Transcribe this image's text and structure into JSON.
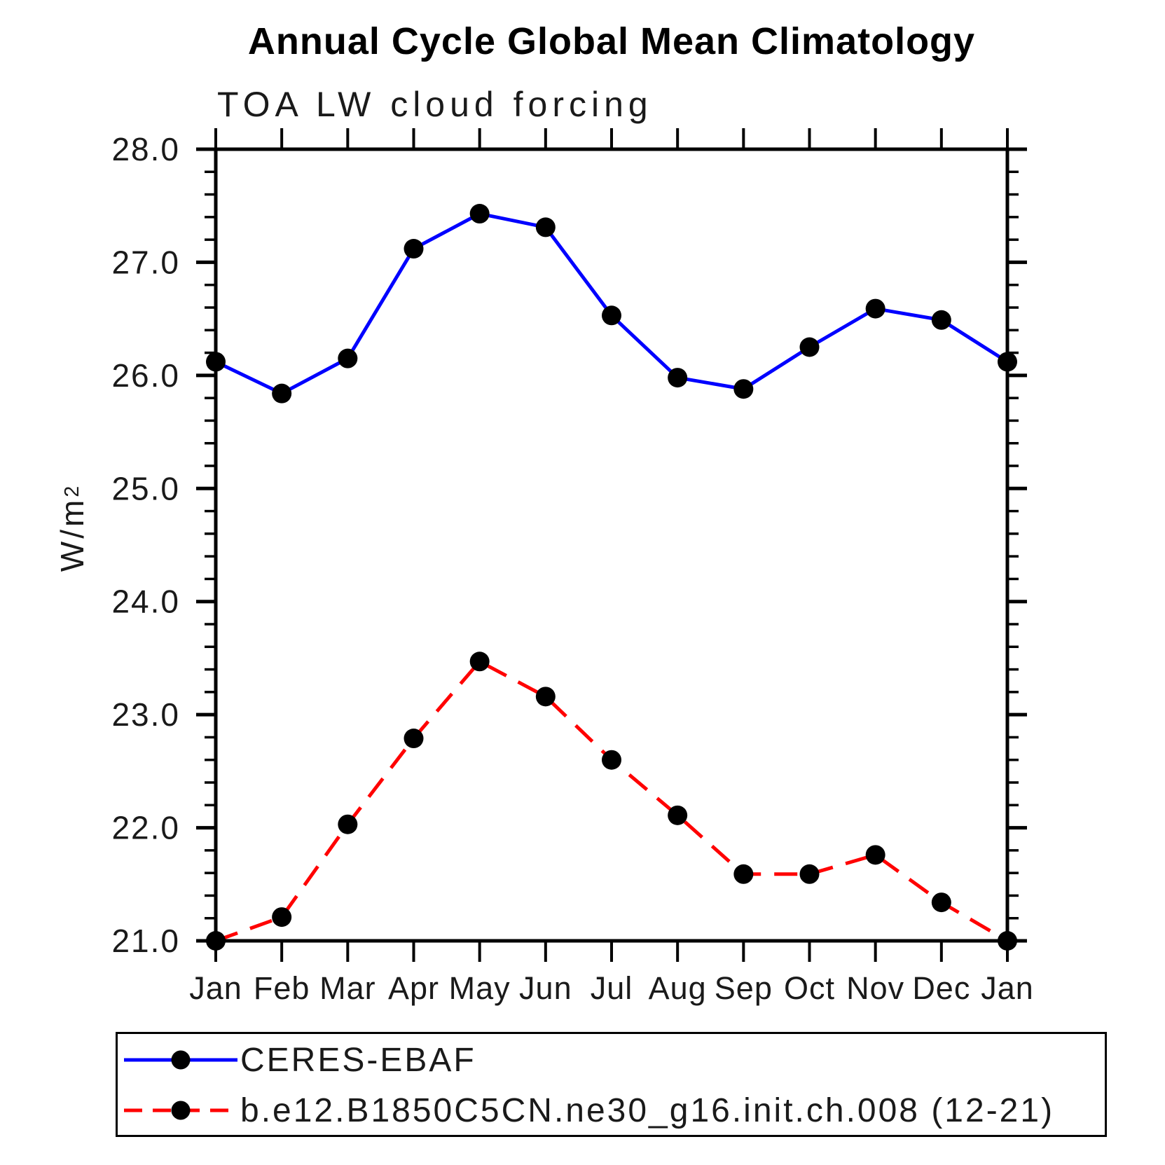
{
  "title": "Annual Cycle Global Mean Climatology",
  "chart_data": {
    "type": "line",
    "title": "Annual Cycle Global Mean Climatology",
    "subtitle": "TOA LW cloud forcing",
    "ylabel": {
      "text": "W/m",
      "sup": "2"
    },
    "xlabel": "",
    "categories": [
      "Jan",
      "Feb",
      "Mar",
      "Apr",
      "May",
      "Jun",
      "Jul",
      "Aug",
      "Sep",
      "Oct",
      "Nov",
      "Dec",
      "Jan"
    ],
    "ylim": [
      21.0,
      28.0
    ],
    "yticks": {
      "values": [
        21,
        22,
        23,
        24,
        25,
        26,
        27,
        28
      ],
      "labels": [
        "21.0",
        "22.0",
        "23.0",
        "24.0",
        "25.0",
        "26.0",
        "27.0",
        "28.0"
      ],
      "minor_step": 0.2
    },
    "grid": false,
    "legend_position": "bottom",
    "series": [
      {
        "name": "CERES-EBAF",
        "color": "#0000ff",
        "style": "solid",
        "marker": "circle",
        "marker_color": "#000000",
        "values": [
          26.12,
          25.84,
          26.15,
          27.12,
          27.43,
          27.31,
          26.53,
          25.98,
          25.88,
          26.25,
          26.59,
          26.49,
          26.12
        ]
      },
      {
        "name": "b.e12.B1850C5CN.ne30_g16.init.ch.008 (12-21)",
        "color": "#ff0000",
        "style": "dashed",
        "marker": "circle",
        "marker_color": "#000000",
        "values": [
          21.0,
          21.21,
          22.03,
          22.79,
          23.47,
          23.16,
          22.6,
          22.11,
          21.59,
          21.59,
          21.76,
          21.34,
          21.0
        ]
      }
    ]
  },
  "colors": {
    "axis": "#000000",
    "text": "#000000",
    "background": "#ffffff"
  }
}
